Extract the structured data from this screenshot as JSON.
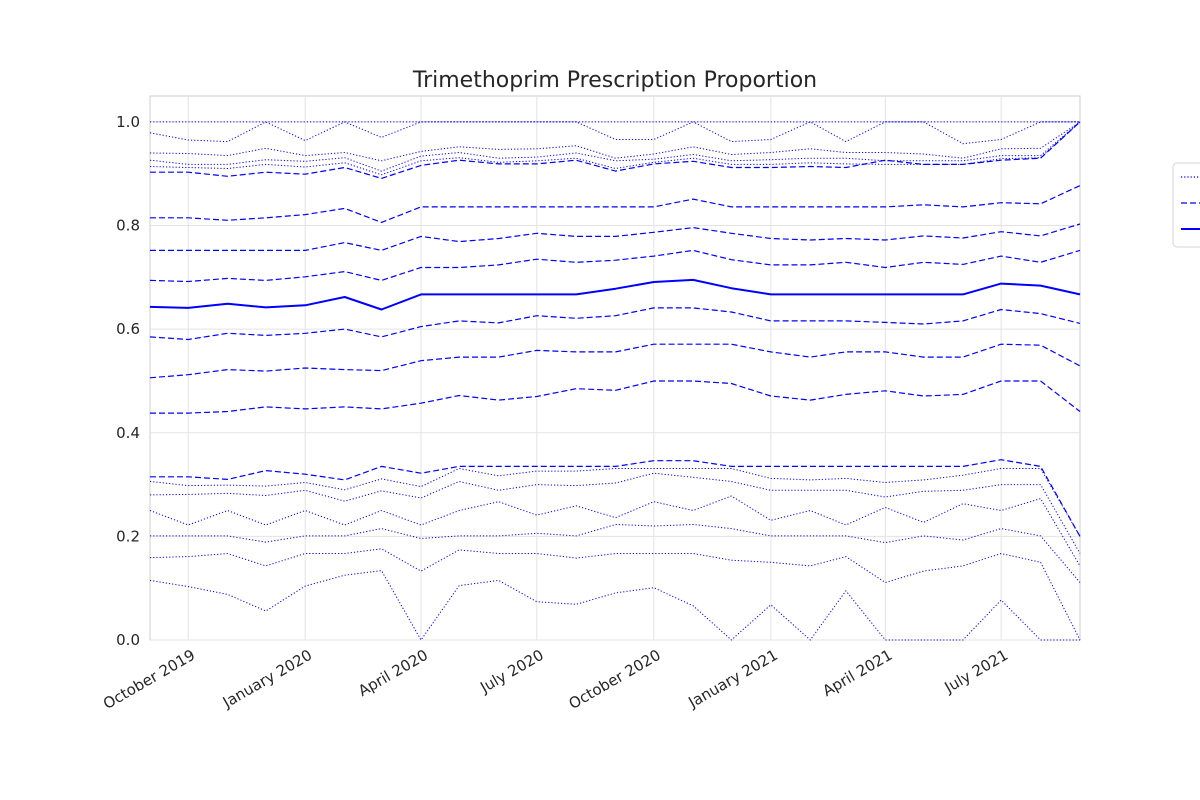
{
  "chart_data": {
    "type": "line",
    "title": "Trimethoprim Prescription Proportion",
    "xlabel": "",
    "ylabel": "",
    "ylim": [
      0,
      1.05
    ],
    "xlim": [
      "2019-09-01",
      "2021-09-01"
    ],
    "y_ticks": [
      0.0,
      0.2,
      0.4,
      0.6,
      0.8,
      1.0
    ],
    "y_tick_labels": [
      "0.0",
      "0.2",
      "0.4",
      "0.6",
      "0.8",
      "1.0"
    ],
    "x_ticks": [
      "2019-10-01",
      "2020-01-01",
      "2020-04-01",
      "2020-07-01",
      "2020-10-01",
      "2021-01-01",
      "2021-04-01",
      "2021-07-01"
    ],
    "x_tick_labels": [
      "October 2019",
      "January 2020",
      "April 2020",
      "July 2020",
      "October 2020",
      "January 2021",
      "April 2021",
      "July 2021"
    ],
    "grid": true,
    "legend_placement": "right",
    "legend_entries": [
      {
        "style": "dotted"
      },
      {
        "style": "dashed"
      },
      {
        "style": "solid"
      }
    ],
    "color": "#0000ff",
    "x": [
      "2019-09-01",
      "2019-10-01",
      "2019-11-01",
      "2019-12-01",
      "2020-01-01",
      "2020-02-01",
      "2020-03-01",
      "2020-04-01",
      "2020-05-01",
      "2020-06-01",
      "2020-07-01",
      "2020-08-01",
      "2020-09-01",
      "2020-10-01",
      "2020-11-01",
      "2020-12-01",
      "2021-01-01",
      "2021-02-01",
      "2021-03-01",
      "2021-04-01",
      "2021-05-01",
      "2021-06-01",
      "2021-07-01",
      "2021-08-01",
      "2021-09-01"
    ],
    "series": [
      {
        "style": "solid",
        "width": 2,
        "values": [
          0.643,
          0.641,
          0.649,
          0.642,
          0.646,
          0.662,
          0.638,
          0.667,
          0.667,
          0.667,
          0.667,
          0.667,
          0.678,
          0.691,
          0.695,
          0.679,
          0.667,
          0.667,
          0.667,
          0.667,
          0.667,
          0.667,
          0.688,
          0.684,
          0.667
        ]
      },
      {
        "style": "dashed",
        "width": 1.2,
        "values": [
          0.903,
          0.903,
          0.895,
          0.903,
          0.899,
          0.912,
          0.891,
          0.916,
          0.926,
          0.919,
          0.919,
          0.926,
          0.905,
          0.919,
          0.924,
          0.912,
          0.912,
          0.914,
          0.912,
          0.926,
          0.918,
          0.918,
          0.926,
          0.93,
          1.0
        ]
      },
      {
        "style": "dashed",
        "width": 1.2,
        "values": [
          0.815,
          0.815,
          0.81,
          0.815,
          0.821,
          0.833,
          0.806,
          0.836,
          0.836,
          0.836,
          0.836,
          0.836,
          0.836,
          0.836,
          0.851,
          0.836,
          0.836,
          0.836,
          0.836,
          0.836,
          0.84,
          0.836,
          0.844,
          0.842,
          0.877
        ]
      },
      {
        "style": "dashed",
        "width": 1.2,
        "values": [
          0.752,
          0.752,
          0.752,
          0.752,
          0.752,
          0.767,
          0.752,
          0.779,
          0.769,
          0.775,
          0.785,
          0.779,
          0.779,
          0.787,
          0.796,
          0.785,
          0.775,
          0.772,
          0.775,
          0.772,
          0.78,
          0.776,
          0.788,
          0.78,
          0.803
        ]
      },
      {
        "style": "dashed",
        "width": 1.2,
        "values": [
          0.694,
          0.692,
          0.698,
          0.694,
          0.701,
          0.711,
          0.694,
          0.719,
          0.719,
          0.724,
          0.735,
          0.729,
          0.733,
          0.741,
          0.752,
          0.734,
          0.724,
          0.724,
          0.729,
          0.719,
          0.729,
          0.725,
          0.741,
          0.729,
          0.752
        ]
      },
      {
        "style": "dashed",
        "width": 1.2,
        "values": [
          0.585,
          0.58,
          0.592,
          0.588,
          0.592,
          0.6,
          0.585,
          0.605,
          0.616,
          0.612,
          0.626,
          0.621,
          0.626,
          0.641,
          0.641,
          0.633,
          0.616,
          0.616,
          0.616,
          0.613,
          0.61,
          0.616,
          0.638,
          0.63,
          0.611
        ]
      },
      {
        "style": "dashed",
        "width": 1.2,
        "values": [
          0.506,
          0.512,
          0.522,
          0.519,
          0.525,
          0.522,
          0.52,
          0.539,
          0.546,
          0.546,
          0.559,
          0.556,
          0.556,
          0.571,
          0.571,
          0.571,
          0.556,
          0.546,
          0.556,
          0.556,
          0.546,
          0.546,
          0.571,
          0.569,
          0.529
        ]
      },
      {
        "style": "dashed",
        "width": 1.2,
        "values": [
          0.438,
          0.438,
          0.441,
          0.45,
          0.446,
          0.45,
          0.446,
          0.457,
          0.472,
          0.463,
          0.47,
          0.485,
          0.482,
          0.5,
          0.5,
          0.495,
          0.471,
          0.463,
          0.474,
          0.481,
          0.471,
          0.474,
          0.5,
          0.5,
          0.441
        ]
      },
      {
        "style": "dashed",
        "width": 1.2,
        "values": [
          0.315,
          0.315,
          0.31,
          0.327,
          0.32,
          0.309,
          0.335,
          0.322,
          0.335,
          0.335,
          0.335,
          0.335,
          0.335,
          0.346,
          0.346,
          0.335,
          0.335,
          0.335,
          0.335,
          0.335,
          0.335,
          0.335,
          0.348,
          0.335,
          0.2
        ]
      },
      {
        "style": "dotted",
        "width": 1,
        "values": [
          1.0,
          1.0,
          1.0,
          1.0,
          1.0,
          1.0,
          1.0,
          1.0,
          1.0,
          1.0,
          1.0,
          1.0,
          1.0,
          1.0,
          1.0,
          1.0,
          1.0,
          1.0,
          1.0,
          1.0,
          1.0,
          1.0,
          1.0,
          1.0,
          1.0
        ]
      },
      {
        "style": "dotted",
        "width": 1,
        "values": [
          0.979,
          0.965,
          0.962,
          1.0,
          0.964,
          1.0,
          0.97,
          1.0,
          1.0,
          1.0,
          1.0,
          1.0,
          0.966,
          0.966,
          1.0,
          0.962,
          0.966,
          1.0,
          0.962,
          1.0,
          1.0,
          0.958,
          0.966,
          1.0,
          1.0
        ]
      },
      {
        "style": "dotted",
        "width": 1,
        "values": [
          0.94,
          0.939,
          0.935,
          0.949,
          0.935,
          0.941,
          0.925,
          0.943,
          0.952,
          0.947,
          0.948,
          0.954,
          0.93,
          0.938,
          0.952,
          0.937,
          0.941,
          0.948,
          0.941,
          0.941,
          0.938,
          0.93,
          0.948,
          0.949,
          1.0
        ]
      },
      {
        "style": "dotted",
        "width": 1,
        "values": [
          0.926,
          0.918,
          0.918,
          0.927,
          0.924,
          0.931,
          0.905,
          0.934,
          0.941,
          0.93,
          0.932,
          0.94,
          0.925,
          0.928,
          0.937,
          0.925,
          0.927,
          0.93,
          0.93,
          0.925,
          0.925,
          0.925,
          0.935,
          0.935,
          1.0
        ]
      },
      {
        "style": "dotted",
        "width": 1,
        "values": [
          0.914,
          0.912,
          0.91,
          0.918,
          0.913,
          0.921,
          0.898,
          0.925,
          0.931,
          0.922,
          0.925,
          0.93,
          0.91,
          0.922,
          0.93,
          0.918,
          0.918,
          0.921,
          0.919,
          0.918,
          0.918,
          0.918,
          0.929,
          0.931,
          1.0
        ]
      },
      {
        "style": "dotted",
        "width": 1,
        "values": [
          0.306,
          0.298,
          0.299,
          0.297,
          0.304,
          0.29,
          0.311,
          0.296,
          0.331,
          0.317,
          0.326,
          0.326,
          0.331,
          0.331,
          0.331,
          0.331,
          0.312,
          0.309,
          0.312,
          0.304,
          0.309,
          0.318,
          0.331,
          0.331,
          0.2
        ]
      },
      {
        "style": "dotted",
        "width": 1,
        "values": [
          0.28,
          0.281,
          0.283,
          0.279,
          0.289,
          0.268,
          0.288,
          0.274,
          0.306,
          0.289,
          0.3,
          0.298,
          0.303,
          0.322,
          0.314,
          0.306,
          0.289,
          0.289,
          0.289,
          0.276,
          0.287,
          0.289,
          0.3,
          0.3,
          0.167
        ]
      },
      {
        "style": "dotted",
        "width": 1,
        "values": [
          0.25,
          0.222,
          0.25,
          0.222,
          0.25,
          0.222,
          0.25,
          0.222,
          0.25,
          0.267,
          0.241,
          0.259,
          0.236,
          0.267,
          0.25,
          0.278,
          0.231,
          0.25,
          0.222,
          0.256,
          0.227,
          0.263,
          0.25,
          0.273,
          0.143
        ]
      },
      {
        "style": "dotted",
        "width": 1,
        "values": [
          0.201,
          0.201,
          0.201,
          0.189,
          0.201,
          0.201,
          0.215,
          0.196,
          0.201,
          0.201,
          0.206,
          0.201,
          0.223,
          0.22,
          0.223,
          0.215,
          0.201,
          0.201,
          0.201,
          0.188,
          0.201,
          0.193,
          0.215,
          0.201,
          0.111
        ]
      },
      {
        "style": "dotted",
        "width": 1,
        "values": [
          0.159,
          0.161,
          0.167,
          0.143,
          0.167,
          0.167,
          0.176,
          0.133,
          0.174,
          0.167,
          0.167,
          0.158,
          0.167,
          0.167,
          0.167,
          0.154,
          0.15,
          0.143,
          0.161,
          0.111,
          0.133,
          0.143,
          0.167,
          0.15,
          0.0
        ]
      },
      {
        "style": "dotted",
        "width": 1,
        "values": [
          0.115,
          0.103,
          0.088,
          0.056,
          0.104,
          0.125,
          0.134,
          0.0,
          0.105,
          0.115,
          0.074,
          0.069,
          0.091,
          0.101,
          0.066,
          0.0,
          0.068,
          0.0,
          0.095,
          0.0,
          0.0,
          0.0,
          0.077,
          0.0,
          0.0
        ]
      }
    ]
  }
}
